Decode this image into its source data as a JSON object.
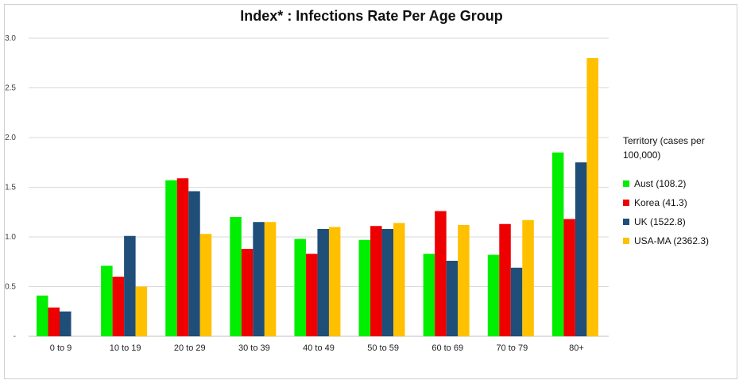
{
  "chart_data": {
    "type": "bar",
    "title": "Index* : Infections Rate Per Age Group",
    "categories": [
      "0 to 9",
      "10 to 19",
      "20 to 29",
      "30 to 39",
      "40 to 49",
      "50 to 59",
      "60 to 69",
      "70 to 79",
      "80+"
    ],
    "series": [
      {
        "name": "Aust (108.2)",
        "color": "#00ee00",
        "values": [
          0.41,
          0.71,
          1.57,
          1.2,
          0.98,
          0.97,
          0.83,
          0.82,
          1.85
        ]
      },
      {
        "name": "Korea (41.3)",
        "color": "#ee0000",
        "values": [
          0.29,
          0.6,
          1.59,
          0.88,
          0.83,
          1.11,
          1.26,
          1.13,
          1.18
        ]
      },
      {
        "name": "UK (1522.8)",
        "color": "#1f4e79",
        "values": [
          0.25,
          1.01,
          1.46,
          1.15,
          1.08,
          1.08,
          0.76,
          0.69,
          1.75
        ]
      },
      {
        "name": "USA-MA (2362.3)",
        "color": "#ffc000",
        "values": [
          null,
          0.5,
          1.03,
          1.15,
          1.1,
          1.14,
          1.12,
          1.17,
          2.8
        ]
      }
    ],
    "yticks": [
      "-",
      "0.5",
      "1.0",
      "1.5",
      "2.0",
      "2.5",
      "3.0"
    ],
    "ylim": [
      0,
      3.0
    ],
    "grid": true,
    "legend_title": "Territory  (cases per 100,000)",
    "legend_position": "right"
  }
}
